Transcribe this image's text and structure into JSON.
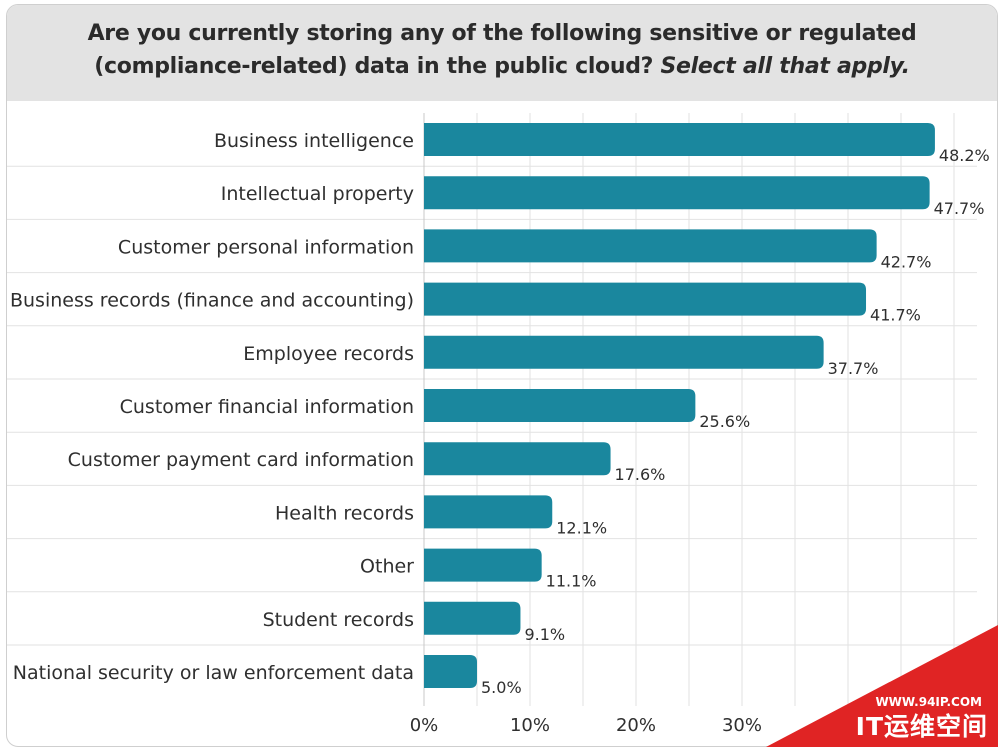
{
  "chart_data": {
    "type": "bar",
    "orientation": "horizontal",
    "title_line1": "Are you currently storing any of the following sensitive or regulated",
    "title_line2": "(compliance-related) data in the public cloud?",
    "title_emphasis": "Select all that apply.",
    "categories": [
      "Business intelligence",
      "Intellectual property",
      "Customer personal information",
      "Business records (finance and accounting)",
      "Employee records",
      "Customer financial information",
      "Customer payment card information",
      "Health records",
      "Other",
      "Student records",
      "National security or law enforcement data"
    ],
    "values": [
      48.2,
      47.7,
      42.7,
      41.7,
      37.7,
      25.6,
      17.6,
      12.1,
      11.1,
      9.1,
      5.0
    ],
    "value_labels": [
      "48.2%",
      "47.7%",
      "42.7%",
      "41.7%",
      "37.7%",
      "25.6%",
      "17.6%",
      "12.1%",
      "11.1%",
      "9.1%",
      "5.0%"
    ],
    "x_ticks": [
      0,
      10,
      20,
      30
    ],
    "x_tick_labels": [
      "0%",
      "10%",
      "20%",
      "30%"
    ],
    "xlim": [
      0,
      50
    ],
    "grid": true,
    "bar_color": "#1a879e"
  },
  "watermark": {
    "url": "WWW.94IP.COM",
    "name": "IT运维空间",
    "color": "#e02424"
  }
}
